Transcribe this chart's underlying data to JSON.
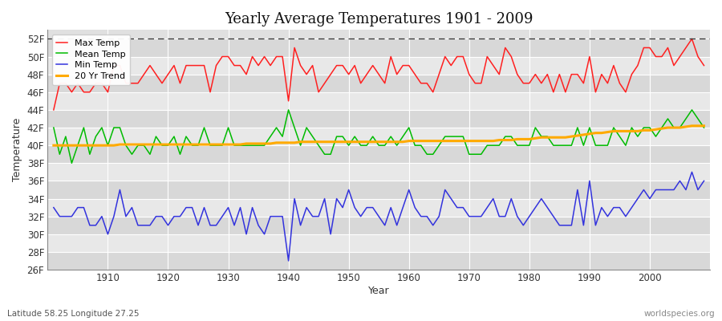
{
  "title": "Yearly Average Temperatures 1901 - 2009",
  "xlabel": "Year",
  "ylabel": "Temperature",
  "subtitle_lat": "Latitude 58.25 Longitude 27.25",
  "credit": "worldspecies.org",
  "background_color": "#ffffff",
  "plot_bg_color": "#e0e0e0",
  "grid_color": "#ffffff",
  "years": [
    1901,
    1902,
    1903,
    1904,
    1905,
    1906,
    1907,
    1908,
    1909,
    1910,
    1911,
    1912,
    1913,
    1914,
    1915,
    1916,
    1917,
    1918,
    1919,
    1920,
    1921,
    1922,
    1923,
    1924,
    1925,
    1926,
    1927,
    1928,
    1929,
    1930,
    1931,
    1932,
    1933,
    1934,
    1935,
    1936,
    1937,
    1938,
    1939,
    1940,
    1941,
    1942,
    1943,
    1944,
    1945,
    1946,
    1947,
    1948,
    1949,
    1950,
    1951,
    1952,
    1953,
    1954,
    1955,
    1956,
    1957,
    1958,
    1959,
    1960,
    1961,
    1962,
    1963,
    1964,
    1965,
    1966,
    1967,
    1968,
    1969,
    1970,
    1971,
    1972,
    1973,
    1974,
    1975,
    1976,
    1977,
    1978,
    1979,
    1980,
    1981,
    1982,
    1983,
    1984,
    1985,
    1986,
    1987,
    1988,
    1989,
    1990,
    1991,
    1992,
    1993,
    1994,
    1995,
    1996,
    1997,
    1998,
    1999,
    2000,
    2001,
    2002,
    2003,
    2004,
    2005,
    2006,
    2007,
    2008,
    2009
  ],
  "max_temp": [
    44,
    47,
    47,
    46,
    47,
    46,
    46,
    47,
    47,
    46,
    49,
    49,
    47,
    47,
    47,
    48,
    49,
    48,
    47,
    48,
    49,
    47,
    49,
    49,
    49,
    49,
    46,
    49,
    50,
    50,
    49,
    49,
    48,
    50,
    49,
    50,
    49,
    50,
    50,
    45,
    51,
    49,
    48,
    49,
    46,
    47,
    48,
    49,
    49,
    48,
    49,
    47,
    48,
    49,
    48,
    47,
    50,
    48,
    49,
    49,
    48,
    47,
    47,
    46,
    48,
    50,
    49,
    50,
    50,
    48,
    47,
    47,
    50,
    49,
    48,
    51,
    50,
    48,
    47,
    47,
    48,
    47,
    48,
    46,
    48,
    46,
    48,
    48,
    47,
    50,
    46,
    48,
    47,
    49,
    47,
    46,
    48,
    49,
    51,
    51,
    50,
    50,
    51,
    49,
    50,
    51,
    52,
    50,
    49
  ],
  "mean_temp": [
    42,
    39,
    41,
    38,
    40,
    42,
    39,
    41,
    42,
    40,
    42,
    42,
    40,
    39,
    40,
    40,
    39,
    41,
    40,
    40,
    41,
    39,
    41,
    40,
    40,
    42,
    40,
    40,
    40,
    42,
    40,
    40,
    40,
    40,
    40,
    40,
    41,
    42,
    41,
    44,
    42,
    40,
    42,
    41,
    40,
    39,
    39,
    41,
    41,
    40,
    41,
    40,
    40,
    41,
    40,
    40,
    41,
    40,
    41,
    42,
    40,
    40,
    39,
    39,
    40,
    41,
    41,
    41,
    41,
    39,
    39,
    39,
    40,
    40,
    40,
    41,
    41,
    40,
    40,
    40,
    42,
    41,
    41,
    40,
    40,
    40,
    40,
    42,
    40,
    42,
    40,
    40,
    40,
    42,
    41,
    40,
    42,
    41,
    42,
    42,
    41,
    42,
    43,
    42,
    42,
    43,
    44,
    43,
    42
  ],
  "min_temp": [
    33,
    32,
    32,
    32,
    33,
    33,
    31,
    31,
    32,
    30,
    32,
    35,
    32,
    33,
    31,
    31,
    31,
    32,
    32,
    31,
    32,
    32,
    33,
    33,
    31,
    33,
    31,
    31,
    32,
    33,
    31,
    33,
    30,
    33,
    31,
    30,
    32,
    32,
    32,
    27,
    34,
    31,
    33,
    32,
    32,
    34,
    30,
    34,
    33,
    35,
    33,
    32,
    33,
    33,
    32,
    31,
    33,
    31,
    33,
    35,
    33,
    32,
    32,
    31,
    32,
    35,
    34,
    33,
    33,
    32,
    32,
    32,
    33,
    34,
    32,
    32,
    34,
    32,
    31,
    32,
    33,
    34,
    33,
    32,
    31,
    31,
    31,
    35,
    31,
    36,
    31,
    33,
    32,
    33,
    33,
    32,
    33,
    34,
    35,
    34,
    35,
    35,
    35,
    35,
    36,
    35,
    37,
    35,
    36
  ],
  "trend_vals": [
    40.0,
    40.0,
    40.0,
    40.0,
    40.0,
    40.0,
    40.0,
    40.0,
    40.0,
    40.0,
    40.0,
    40.1,
    40.1,
    40.1,
    40.1,
    40.1,
    40.1,
    40.1,
    40.1,
    40.1,
    40.1,
    40.1,
    40.1,
    40.1,
    40.1,
    40.1,
    40.1,
    40.1,
    40.1,
    40.1,
    40.1,
    40.1,
    40.2,
    40.2,
    40.2,
    40.2,
    40.2,
    40.3,
    40.3,
    40.3,
    40.3,
    40.4,
    40.4,
    40.4,
    40.4,
    40.4,
    40.4,
    40.4,
    40.4,
    40.4,
    40.4,
    40.4,
    40.4,
    40.4,
    40.4,
    40.4,
    40.4,
    40.4,
    40.4,
    40.5,
    40.5,
    40.5,
    40.5,
    40.5,
    40.5,
    40.5,
    40.5,
    40.5,
    40.5,
    40.5,
    40.5,
    40.5,
    40.5,
    40.5,
    40.6,
    40.6,
    40.6,
    40.7,
    40.7,
    40.7,
    40.8,
    40.9,
    40.9,
    40.9,
    40.9,
    40.9,
    41.0,
    41.1,
    41.2,
    41.3,
    41.4,
    41.4,
    41.5,
    41.6,
    41.6,
    41.6,
    41.6,
    41.6,
    41.7,
    41.7,
    41.8,
    41.9,
    42.0,
    42.0,
    42.0,
    42.1,
    42.2,
    42.2,
    42.2
  ],
  "ylim": [
    26,
    53
  ],
  "yticks": [
    26,
    28,
    30,
    32,
    34,
    36,
    38,
    40,
    42,
    44,
    46,
    48,
    50,
    52
  ],
  "xlim": [
    1900,
    2010
  ],
  "xticks": [
    1910,
    1920,
    1930,
    1940,
    1950,
    1960,
    1970,
    1980,
    1990,
    2000
  ],
  "dashed_line_y": 52,
  "line_colors": {
    "max": "#ff2020",
    "mean": "#00bb00",
    "min": "#3333dd",
    "trend": "#ffaa00"
  },
  "legend_labels": [
    "Max Temp",
    "Mean Temp",
    "Min Temp",
    "20 Yr Trend"
  ],
  "figsize": [
    9.0,
    4.0
  ],
  "dpi": 100
}
